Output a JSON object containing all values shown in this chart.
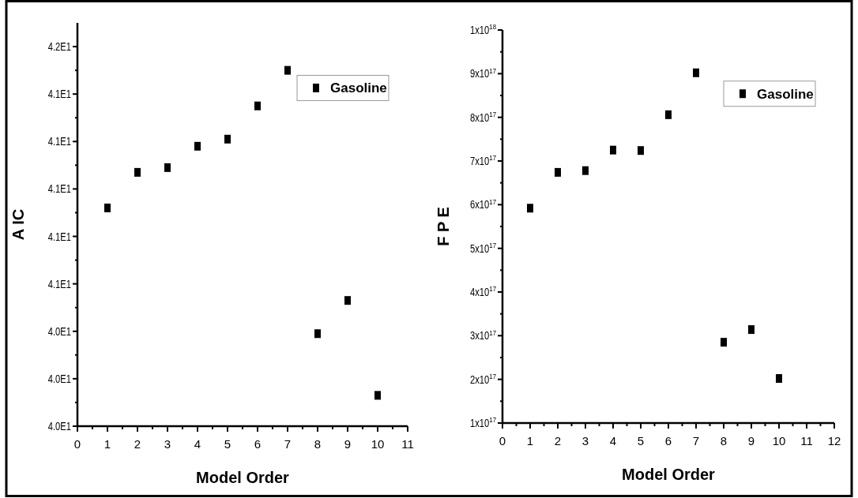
{
  "chart_data": [
    {
      "type": "scatter",
      "xlabel": "Model Order",
      "ylabel": "A IC",
      "x": [
        1,
        2,
        3,
        4,
        5,
        6,
        7,
        8,
        9,
        10
      ],
      "marker": "square",
      "legend": "top right",
      "grid": false,
      "series": [
        {
          "name": "Gasoline",
          "color": "#000000",
          "values": [
            40.92,
            41.07,
            41.09,
            41.18,
            41.21,
            41.35,
            41.5,
            40.39,
            40.53,
            40.13
          ]
        }
      ],
      "xlim": [
        0,
        11
      ],
      "xticks": [
        0,
        1,
        2,
        3,
        4,
        5,
        6,
        7,
        8,
        9,
        10,
        11
      ],
      "ylim": [
        40.0,
        41.7
      ],
      "yticks": [
        {
          "value": 40.0,
          "label": "4.0E1"
        },
        {
          "value": 40.1,
          "label": null
        },
        {
          "value": 40.2,
          "label": "4.0E1"
        },
        {
          "value": 40.3,
          "label": null
        },
        {
          "value": 40.4,
          "label": "4.0E1"
        },
        {
          "value": 40.5,
          "label": null
        },
        {
          "value": 40.6,
          "label": "4.1E1"
        },
        {
          "value": 40.7,
          "label": null
        },
        {
          "value": 40.8,
          "label": "4.1E1"
        },
        {
          "value": 40.9,
          "label": null
        },
        {
          "value": 41.0,
          "label": "4.1E1"
        },
        {
          "value": 41.1,
          "label": null
        },
        {
          "value": 41.2,
          "label": "4.1E1"
        },
        {
          "value": 41.3,
          "label": null
        },
        {
          "value": 41.4,
          "label": "4.1E1"
        },
        {
          "value": 41.5,
          "label": null
        },
        {
          "value": 41.6,
          "label": "4.2E1"
        }
      ]
    },
    {
      "type": "scatter",
      "xlabel": "Model Order",
      "ylabel": "F P E",
      "x": [
        1,
        2,
        3,
        4,
        5,
        6,
        7,
        8,
        9,
        10
      ],
      "marker": "square",
      "legend": "top right",
      "grid": false,
      "series": [
        {
          "name": "Gasoline",
          "color": "#000000",
          "values": [
            5.92e+17,
            6.74e+17,
            6.78e+17,
            7.25e+17,
            7.24e+17,
            8.06e+17,
            9.02e+17,
            2.85e+17,
            3.14e+17,
            2.02e+17
          ]
        }
      ],
      "xlim": [
        0,
        12
      ],
      "xticks": [
        0,
        1,
        2,
        3,
        4,
        5,
        6,
        7,
        8,
        9,
        10,
        11,
        12
      ],
      "ylim": [
        1e+17,
        1e+18
      ],
      "yticks": [
        {
          "value": 1e+17,
          "label": "1x10$^{17}$"
        },
        {
          "value": 1.5e+17,
          "label": null
        },
        {
          "value": 2e+17,
          "label": "2x10$^{17}$"
        },
        {
          "value": 2.5e+17,
          "label": null
        },
        {
          "value": 3e+17,
          "label": "3x10$^{17}$"
        },
        {
          "value": 3.5e+17,
          "label": null
        },
        {
          "value": 4e+17,
          "label": "4x10$^{17}$"
        },
        {
          "value": 4.5e+17,
          "label": null
        },
        {
          "value": 5e+17,
          "label": "5x10$^{17}$"
        },
        {
          "value": 5.5e+17,
          "label": null
        },
        {
          "value": 6e+17,
          "label": "6x10$^{17}$"
        },
        {
          "value": 6.5e+17,
          "label": null
        },
        {
          "value": 7e+17,
          "label": "7x10$^{17}$"
        },
        {
          "value": 7.5e+17,
          "label": null
        },
        {
          "value": 8e+17,
          "label": "8x10$^{17}$"
        },
        {
          "value": 8.5e+17,
          "label": null
        },
        {
          "value": 9e+17,
          "label": "9x10$^{17}$"
        },
        {
          "value": 9.5e+17,
          "label": null
        },
        {
          "value": 1e+18,
          "label": "1x10$^{18}$"
        }
      ]
    }
  ]
}
